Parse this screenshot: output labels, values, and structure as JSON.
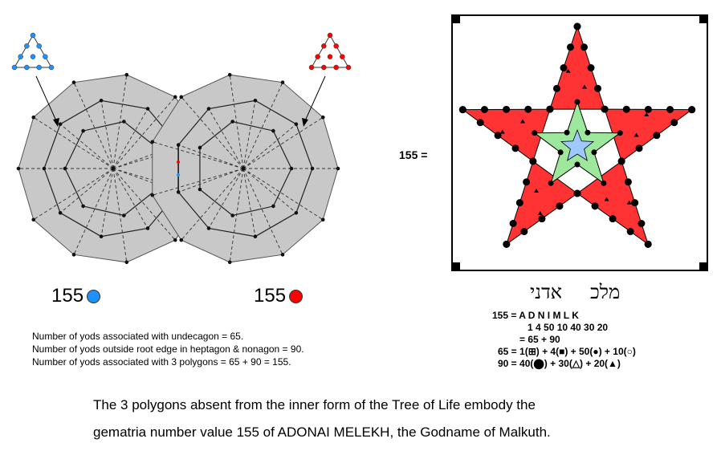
{
  "colors": {
    "blue": "#1e90ff",
    "red": "#ff0000",
    "polygon_fill": "#c8c8c8",
    "star_red": "#ff3333",
    "star_green": "#9de89d",
    "star_blue": "#9ec9ff"
  },
  "left_count": "155",
  "right_count": "155",
  "equation_label": "155  =",
  "notes": [
    "Number of yods associated with undecagon = 65.",
    "Number of yods outside root edge in heptagon & nonagon = 90.",
    "Number of yods associated with 3 polygons = 65 + 90 = 155."
  ],
  "hebrew": {
    "melekh": "מלכ",
    "adonai": "אדני"
  },
  "gematria_lines": [
    "155 =  A   D   N    I          M    L    K",
    "1   4   50  10       40   30   20",
    "=         65       +        90",
    "65   =  1(⊞)  +  4(■)  +  50(●)  +  10(○)",
    "90   =  40(⬤)  +  30(△)  +  20(▲)"
  ],
  "caption_lines": [
    "The 3 polygons absent from the inner form of the Tree of Life embody the",
    "gematria number value 155 of ADONAI MELEKH, the Godname of Malkuth."
  ]
}
